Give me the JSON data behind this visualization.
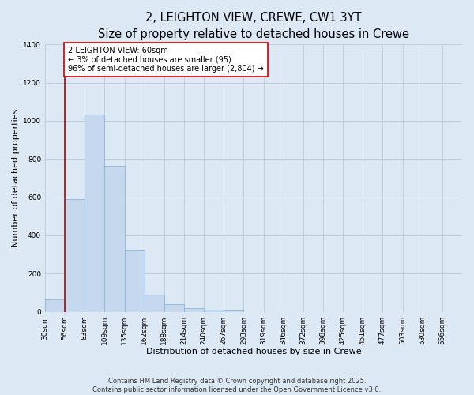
{
  "title": "2, LEIGHTON VIEW, CREWE, CW1 3YT",
  "subtitle": "Size of property relative to detached houses in Crewe",
  "xlabel": "Distribution of detached houses by size in Crewe",
  "ylabel": "Number of detached properties",
  "bin_labels": [
    "30sqm",
    "56sqm",
    "83sqm",
    "109sqm",
    "135sqm",
    "162sqm",
    "188sqm",
    "214sqm",
    "240sqm",
    "267sqm",
    "293sqm",
    "319sqm",
    "346sqm",
    "372sqm",
    "398sqm",
    "425sqm",
    "451sqm",
    "477sqm",
    "503sqm",
    "530sqm",
    "556sqm"
  ],
  "bar_values": [
    65,
    590,
    1035,
    765,
    320,
    90,
    40,
    20,
    10,
    5,
    0,
    0,
    0,
    0,
    0,
    0,
    0,
    0,
    0,
    0,
    0
  ],
  "bar_color": "#c5d8ee",
  "bar_edge_color": "#8db4d8",
  "vline_x_idx": 1,
  "vline_color": "#bb0000",
  "annotation_text": "2 LEIGHTON VIEW: 60sqm\n← 3% of detached houses are smaller (95)\n96% of semi-detached houses are larger (2,804) →",
  "annotation_box_color": "#ffffff",
  "annotation_box_edge": "#cc0000",
  "ylim": [
    0,
    1400
  ],
  "yticks": [
    0,
    200,
    400,
    600,
    800,
    1000,
    1200,
    1400
  ],
  "bg_color": "#dde8f5",
  "plot_bg_color": "#dde8f5",
  "grid_color": "#c0cfe0",
  "footer_line1": "Contains HM Land Registry data © Crown copyright and database right 2025.",
  "footer_line2": "Contains public sector information licensed under the Open Government Licence v3.0.",
  "title_fontsize": 10.5,
  "subtitle_fontsize": 9,
  "xlabel_fontsize": 8,
  "ylabel_fontsize": 8,
  "tick_fontsize": 6.5,
  "annot_fontsize": 7,
  "footer_fontsize": 6
}
